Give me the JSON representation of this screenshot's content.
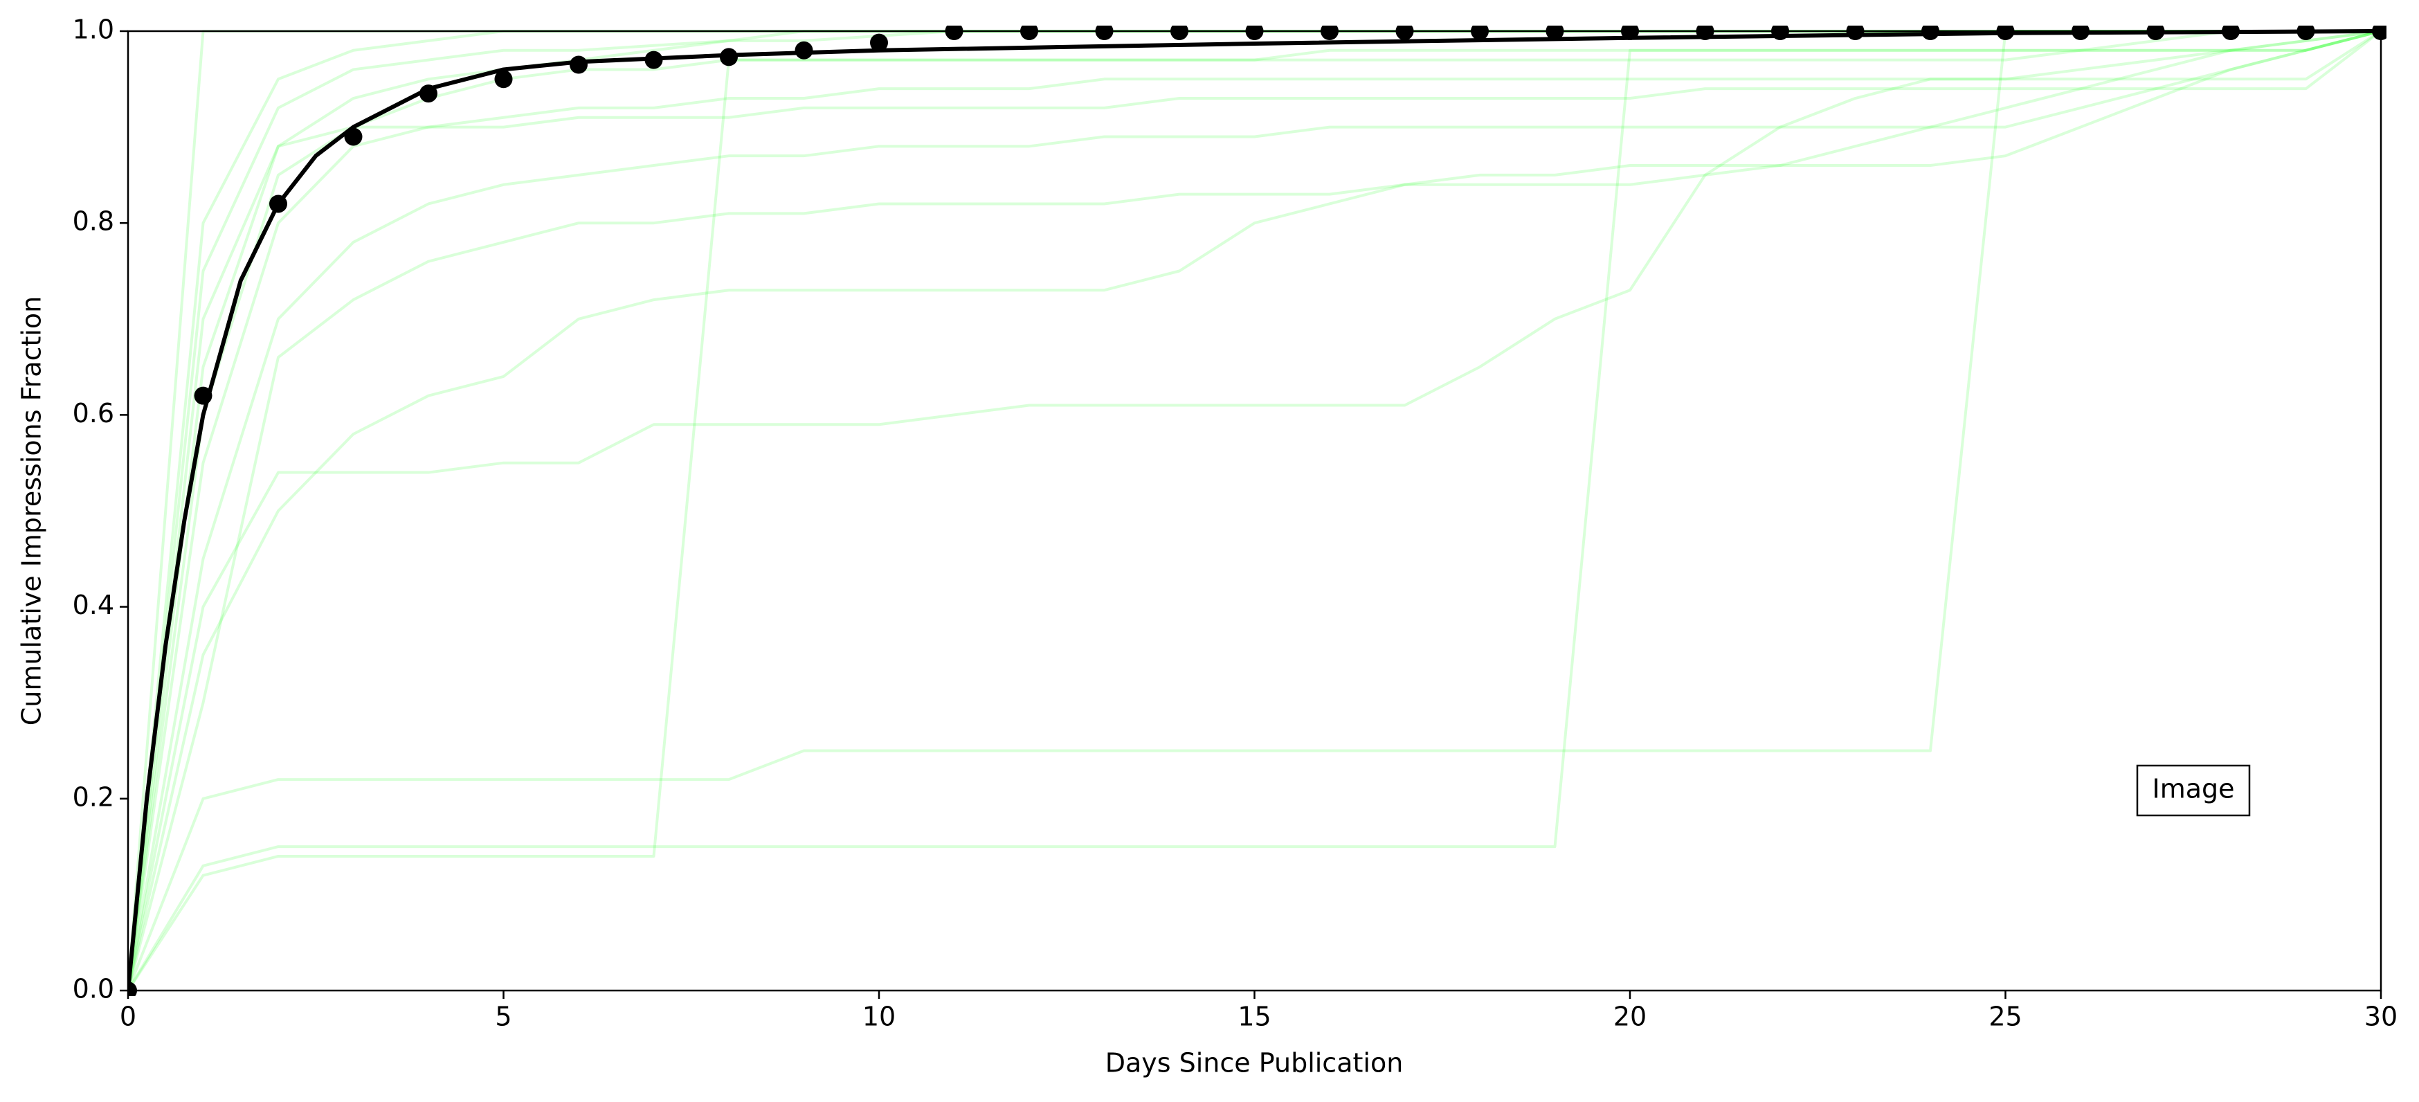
{
  "chart_data": {
    "type": "line",
    "xlabel": "Days Since Publication",
    "ylabel": "Cumulative Impressions Fraction",
    "annotation": "Image",
    "xlim": [
      0,
      30
    ],
    "ylim": [
      0,
      1
    ],
    "xticks": [
      0,
      5,
      10,
      15,
      20,
      25,
      30
    ],
    "yticks": [
      {
        "value": 0,
        "label": "0.0"
      },
      {
        "value": 0.2,
        "label": "0.2"
      },
      {
        "value": 0.4,
        "label": "0.4"
      },
      {
        "value": 0.6,
        "label": "0.6"
      },
      {
        "value": 0.8,
        "label": "0.8"
      },
      {
        "value": 1,
        "label": "1.0"
      }
    ],
    "x": [
      0,
      1,
      2,
      3,
      4,
      5,
      6,
      7,
      8,
      9,
      10,
      11,
      12,
      13,
      14,
      15,
      16,
      17,
      18,
      19,
      20,
      21,
      22,
      23,
      24,
      25,
      26,
      27,
      28,
      29,
      30
    ],
    "series": [
      {
        "color": "rgba(0,255,0,0.15)",
        "width": 4,
        "values": [
          0,
          1,
          1,
          1,
          1,
          1,
          1,
          1,
          1,
          1,
          1,
          1,
          1,
          1,
          1,
          1,
          1,
          1,
          1,
          1,
          1,
          1,
          1,
          1,
          1,
          1,
          1,
          1,
          1,
          1,
          1
        ]
      },
      {
        "color": "rgba(0,255,0,0.15)",
        "width": 4,
        "values": [
          0,
          0.75,
          0.92,
          0.96,
          0.97,
          0.98,
          0.98,
          0.985,
          0.99,
          0.99,
          0.995,
          1,
          1,
          1,
          1,
          1,
          1,
          1,
          1,
          1,
          1,
          1,
          1,
          1,
          1,
          1,
          1,
          1,
          1,
          1,
          1
        ]
      },
      {
        "color": "rgba(0,255,0,0.15)",
        "width": 4,
        "values": [
          0,
          0.55,
          0.8,
          0.88,
          0.9,
          0.91,
          0.92,
          0.92,
          0.93,
          0.93,
          0.94,
          0.94,
          0.94,
          0.95,
          0.95,
          0.95,
          0.95,
          0.95,
          0.95,
          0.95,
          0.95,
          0.95,
          0.95,
          0.95,
          0.95,
          0.95,
          0.95,
          0.95,
          0.95,
          0.95,
          1
        ]
      },
      {
        "color": "rgba(0,255,0,0.15)",
        "width": 4,
        "values": [
          0,
          0.12,
          0.14,
          0.14,
          0.14,
          0.14,
          0.14,
          0.14,
          0.97,
          0.97,
          0.97,
          0.97,
          0.97,
          0.97,
          0.97,
          0.97,
          0.98,
          0.98,
          0.98,
          0.98,
          0.98,
          0.98,
          0.98,
          0.98,
          0.98,
          0.98,
          0.98,
          0.98,
          0.98,
          0.98,
          1
        ]
      },
      {
        "color": "rgba(0,255,0,0.15)",
        "width": 4,
        "values": [
          0,
          0.13,
          0.15,
          0.15,
          0.15,
          0.15,
          0.15,
          0.15,
          0.15,
          0.15,
          0.15,
          0.15,
          0.15,
          0.15,
          0.15,
          0.15,
          0.15,
          0.15,
          0.15,
          0.15,
          0.98,
          0.98,
          0.98,
          0.98,
          0.98,
          0.98,
          0.98,
          0.98,
          0.98,
          0.98,
          1
        ]
      },
      {
        "color": "rgba(0,255,0,0.15)",
        "width": 4,
        "values": [
          0,
          0.2,
          0.22,
          0.22,
          0.22,
          0.22,
          0.22,
          0.22,
          0.22,
          0.25,
          0.25,
          0.25,
          0.25,
          0.25,
          0.25,
          0.25,
          0.25,
          0.25,
          0.25,
          0.25,
          0.25,
          0.25,
          0.25,
          0.25,
          0.25,
          1,
          1,
          1,
          1,
          1,
          1
        ]
      },
      {
        "color": "rgba(0,255,0,0.15)",
        "width": 4,
        "values": [
          0,
          0.4,
          0.54,
          0.54,
          0.54,
          0.55,
          0.55,
          0.59,
          0.59,
          0.59,
          0.59,
          0.6,
          0.61,
          0.61,
          0.61,
          0.61,
          0.61,
          0.61,
          0.65,
          0.7,
          0.73,
          0.85,
          0.9,
          0.93,
          0.95,
          0.95,
          0.96,
          0.97,
          0.98,
          0.99,
          1
        ]
      },
      {
        "color": "rgba(0,255,0,0.15)",
        "width": 4,
        "values": [
          0,
          0.35,
          0.5,
          0.58,
          0.62,
          0.64,
          0.7,
          0.72,
          0.73,
          0.73,
          0.73,
          0.73,
          0.73,
          0.73,
          0.75,
          0.8,
          0.82,
          0.84,
          0.85,
          0.85,
          0.86,
          0.86,
          0.86,
          0.86,
          0.86,
          0.87,
          0.9,
          0.93,
          0.96,
          0.98,
          1
        ]
      },
      {
        "color": "rgba(0,255,0,0.15)",
        "width": 4,
        "values": [
          0,
          0.6,
          0.85,
          0.9,
          0.93,
          0.95,
          0.96,
          0.96,
          0.97,
          0.97,
          0.97,
          0.97,
          0.97,
          0.97,
          0.97,
          0.97,
          0.97,
          0.97,
          0.97,
          0.97,
          0.97,
          0.97,
          0.97,
          0.97,
          0.97,
          0.97,
          0.98,
          0.99,
          1,
          1,
          1
        ]
      },
      {
        "color": "rgba(0,255,0,0.15)",
        "width": 4,
        "values": [
          0,
          0.7,
          0.88,
          0.93,
          0.95,
          0.96,
          0.97,
          0.98,
          0.99,
          1,
          1,
          1,
          1,
          1,
          1,
          1,
          1,
          1,
          1,
          1,
          1,
          1,
          1,
          1,
          1,
          1,
          1,
          1,
          1,
          1,
          1
        ]
      },
      {
        "color": "rgba(0,255,0,0.15)",
        "width": 4,
        "values": [
          0,
          0.45,
          0.7,
          0.78,
          0.82,
          0.84,
          0.85,
          0.86,
          0.87,
          0.87,
          0.88,
          0.88,
          0.88,
          0.89,
          0.89,
          0.89,
          0.9,
          0.9,
          0.9,
          0.9,
          0.9,
          0.9,
          0.9,
          0.9,
          0.9,
          0.9,
          0.92,
          0.94,
          0.96,
          0.98,
          1
        ]
      },
      {
        "color": "rgba(0,255,0,0.15)",
        "width": 4,
        "values": [
          0,
          0.8,
          0.95,
          0.98,
          0.99,
          1,
          1,
          1,
          1,
          1,
          1,
          1,
          1,
          1,
          1,
          1,
          1,
          1,
          1,
          1,
          1,
          1,
          1,
          1,
          1,
          1,
          1,
          1,
          1,
          1,
          1
        ]
      },
      {
        "color": "rgba(0,255,0,0.15)",
        "width": 4,
        "values": [
          0,
          0.3,
          0.66,
          0.72,
          0.76,
          0.78,
          0.8,
          0.8,
          0.81,
          0.81,
          0.82,
          0.82,
          0.82,
          0.82,
          0.83,
          0.83,
          0.83,
          0.84,
          0.84,
          0.84,
          0.84,
          0.85,
          0.86,
          0.88,
          0.9,
          0.92,
          0.94,
          0.96,
          0.98,
          0.99,
          1
        ]
      },
      {
        "color": "rgba(0,255,0,0.15)",
        "width": 4,
        "values": [
          0,
          0.65,
          0.88,
          0.9,
          0.9,
          0.9,
          0.91,
          0.91,
          0.91,
          0.92,
          0.92,
          0.92,
          0.92,
          0.92,
          0.93,
          0.93,
          0.93,
          0.93,
          0.93,
          0.93,
          0.93,
          0.94,
          0.94,
          0.94,
          0.94,
          0.94,
          0.94,
          0.94,
          0.94,
          0.94,
          1
        ]
      },
      {
        "color": "#000000",
        "width": 6,
        "x": [
          0,
          0.25,
          0.5,
          0.75,
          1,
          1.5,
          2,
          2.5,
          3,
          4,
          5,
          6,
          8,
          10,
          15,
          20,
          25,
          30
        ],
        "values": [
          0,
          0.2,
          0.36,
          0.49,
          0.6,
          0.74,
          0.82,
          0.87,
          0.9,
          0.94,
          0.96,
          0.968,
          0.975,
          0.98,
          0.987,
          0.993,
          0.998,
          1
        ]
      },
      {
        "color": "#000000",
        "marker": "dot",
        "values": [
          0,
          0.62,
          0.82,
          0.89,
          0.935,
          0.95,
          0.965,
          0.97,
          0.973,
          0.98,
          0.988,
          1,
          1,
          1,
          1,
          1,
          1,
          1,
          1,
          1,
          1,
          1,
          1,
          1,
          1,
          1,
          1,
          1,
          1,
          1,
          1
        ]
      }
    ]
  }
}
